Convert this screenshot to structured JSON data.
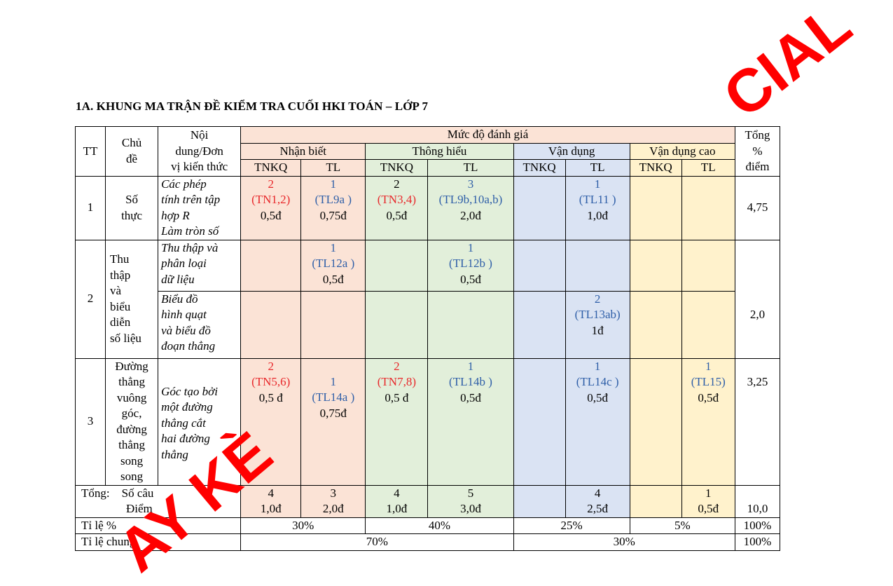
{
  "title": "1A. KHUNG MA TRẬN ĐỀ KIỂM TRA CUỐI HKI TOÁN – LỚP 7",
  "header": {
    "tt": "TT",
    "chu_de": [
      "Chủ",
      "đề"
    ],
    "noi_dung": [
      "Nội",
      "dung/Đơn",
      "vị kiến thức"
    ],
    "muc_do": "Mức độ đánh giá",
    "tong": [
      "Tổng",
      "%",
      "điểm"
    ],
    "levels": [
      "Nhận biết",
      "Thông hiểu",
      "Vận dụng",
      "Vận dụng cao"
    ],
    "sub": [
      "TNKQ",
      "TL",
      "TNKQ",
      "TL",
      "TNKQ",
      "TL",
      "TNKQ",
      "TL"
    ]
  },
  "rows": {
    "r1": {
      "tt": "1",
      "chu_de": [
        "Số",
        "thực"
      ],
      "noi_dung": [
        "Các phép",
        "tính trên tập",
        "hợp  R",
        "Làm tròn số"
      ],
      "nb_tnkq": [
        "2",
        "(TN1,2)",
        "0,5đ"
      ],
      "nb_tl": [
        "1",
        "(TL9a )",
        "0,75đ"
      ],
      "th_tnkq": [
        "2",
        "(TN3,4)",
        "0,5đ"
      ],
      "th_tl": [
        "3",
        "(TL9b,10a,b)",
        "2,0đ"
      ],
      "vd_tl": [
        "1",
        "(TL11 )",
        "1,0đ"
      ],
      "tong": "4,75"
    },
    "r2": {
      "tt": "2",
      "chu_de": [
        "Thu",
        "thập",
        "và",
        "biểu",
        "diễn",
        "số liệu"
      ],
      "a_noi_dung": [
        "Thu thập và",
        "phân loại",
        "dữ liệu"
      ],
      "a_nb_tl": [
        "1",
        "(TL12a )",
        "0,5đ"
      ],
      "a_th_tl": [
        "1",
        "(TL12b )",
        "0,5đ"
      ],
      "b_noi_dung": [
        "Biểu đồ",
        "hình quạt",
        "và biểu đồ",
        "đoạn thẳng"
      ],
      "b_vd_tl": [
        "2",
        "(TL13ab)",
        "1đ"
      ],
      "tong": "2,0"
    },
    "r3": {
      "tt": "3",
      "chu_de": [
        "Đường",
        "thẳng",
        "vuông",
        "góc,",
        "đường",
        "thẳng",
        "song",
        "song"
      ],
      "noi_dung": [
        "Góc tạo bởi",
        "một đường",
        "thẳng cắt",
        "hai đường",
        "thẳng"
      ],
      "nb_tnkq": [
        "2",
        "(TN5,6)",
        "0,5 đ"
      ],
      "nb_tl": [
        "1",
        "(TL14a )",
        "0,75đ"
      ],
      "th_tnkq": [
        "2",
        "(TN7,8)",
        "0,5 đ"
      ],
      "th_tl": [
        "1",
        "(TL14b )",
        "0,5đ"
      ],
      "vd_tl": [
        "1",
        "(TL14c )",
        "0,5đ"
      ],
      "vdc_tl": [
        "1",
        "(TL15)",
        "0,5đ"
      ],
      "tong": "3,25"
    }
  },
  "totals": {
    "label_a": "Tổng:",
    "label_b": "Số câu",
    "label_c": "Điểm",
    "nb_tnkq": [
      "4",
      "1,0đ"
    ],
    "nb_tl": [
      "3",
      "2,0đ"
    ],
    "th_tnkq": [
      "4",
      "1,0đ"
    ],
    "th_tl": [
      "5",
      "3,0đ"
    ],
    "vd_tl": [
      "4",
      "2,5đ"
    ],
    "vdc_tl": [
      "1",
      "0,5đ"
    ],
    "tong": "10,0"
  },
  "ti_le": {
    "label": "Tỉ lệ %",
    "nb": "30%",
    "th": "40%",
    "vd": "25%",
    "vdc": "5%",
    "tong": "100%"
  },
  "ti_le_chung": {
    "label": "Tỉ lệ chung",
    "a": "70%",
    "b": "30%",
    "tong": "100%"
  },
  "watermark": {
    "top_right": "CIAL",
    "bottom_left": "AY KÈ"
  },
  "colors": {
    "nhan_biet": "#fbe3d6",
    "thong_hieu": "#e2efda",
    "van_dung": "#dae3f3",
    "van_dung_cao": "#fff2cc",
    "red_text": "#e8282b",
    "blue_text": "#2f5fa8",
    "watermark": "#ff0000"
  }
}
